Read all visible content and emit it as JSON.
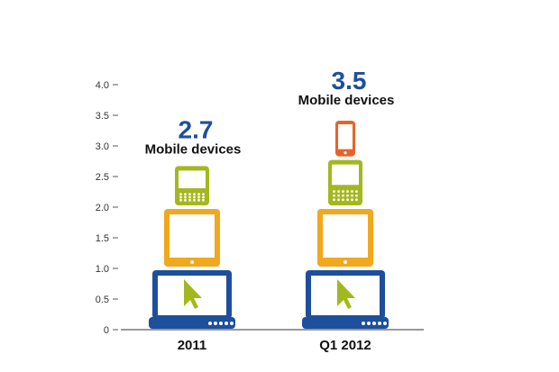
{
  "chart_data": {
    "type": "bar",
    "categories": [
      "2011",
      "Q1 2012"
    ],
    "totals": [
      {
        "value": "2.7",
        "label": "Mobile devices"
      },
      {
        "value": "3.5",
        "label": "Mobile devices"
      }
    ],
    "stacks": [
      [
        {
          "device": "laptop",
          "value": 1.0
        },
        {
          "device": "tablet",
          "value": 1.0
        },
        {
          "device": "smartphone",
          "value": 0.7
        }
      ],
      [
        {
          "device": "laptop",
          "value": 1.0
        },
        {
          "device": "tablet",
          "value": 1.0
        },
        {
          "device": "smartphone",
          "value": 0.8
        },
        {
          "device": "phone",
          "value": 0.7
        }
      ]
    ],
    "yticks": [
      "0",
      "0.5",
      "1.0",
      "1.5",
      "2.0",
      "2.5",
      "3.0",
      "3.5",
      "4.0"
    ],
    "ylim": [
      0,
      4
    ],
    "grid": false,
    "colors": {
      "laptop": "#1d4f9c",
      "tablet": "#f0a81e",
      "smartphone": "#a3b81e",
      "phone": "#e8632a",
      "cursor": "#a3b81e",
      "total_value": "#1d4f9c"
    }
  }
}
